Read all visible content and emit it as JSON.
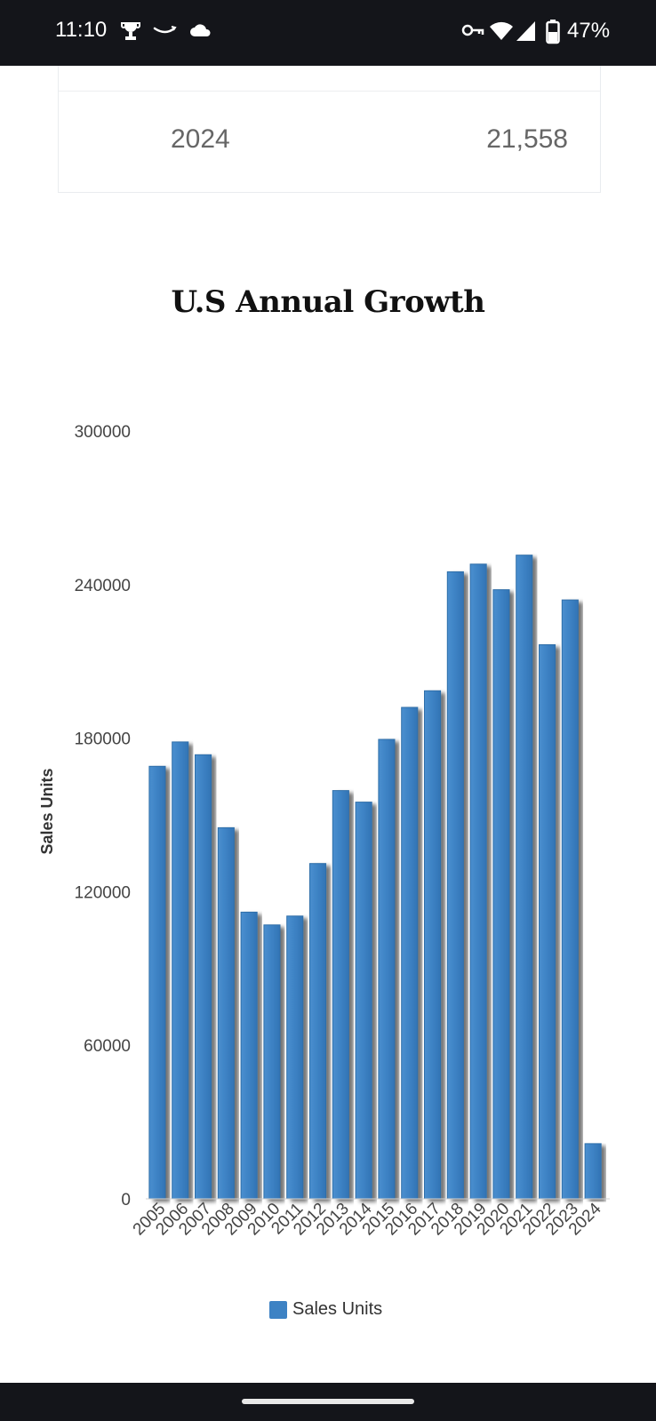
{
  "status_bar": {
    "time": "11:10",
    "left_icons": [
      "trophy-icon",
      "amazon-smile-icon",
      "cloud-icon"
    ],
    "right_icons": [
      "vpn-key-icon",
      "wifi-icon",
      "cell-signal-icon",
      "battery-icon"
    ],
    "battery": "47%"
  },
  "table": {
    "row": {
      "year": "2024",
      "value": "21,558"
    }
  },
  "chart_data": {
    "type": "bar",
    "title": "U.S Annual Growth",
    "xlabel": "",
    "ylabel": "Sales Units",
    "categories": [
      "2005",
      "2006",
      "2007",
      "2008",
      "2009",
      "2010",
      "2011",
      "2012",
      "2013",
      "2014",
      "2015",
      "2016",
      "2017",
      "2018",
      "2019",
      "2020",
      "2021",
      "2022",
      "2023",
      "2024"
    ],
    "series": [
      {
        "name": "Sales Units",
        "values": [
          169000,
          178500,
          173500,
          145000,
          112000,
          107000,
          110500,
          131000,
          159500,
          155000,
          179500,
          192000,
          198500,
          245000,
          248000,
          238000,
          251500,
          216500,
          234000,
          21558
        ],
        "color": "#3d82c4"
      }
    ],
    "yticks": [
      0,
      60000,
      120000,
      180000,
      240000,
      300000
    ],
    "ylim": [
      0,
      300000
    ],
    "grid": false,
    "legend": "bottom-center"
  }
}
